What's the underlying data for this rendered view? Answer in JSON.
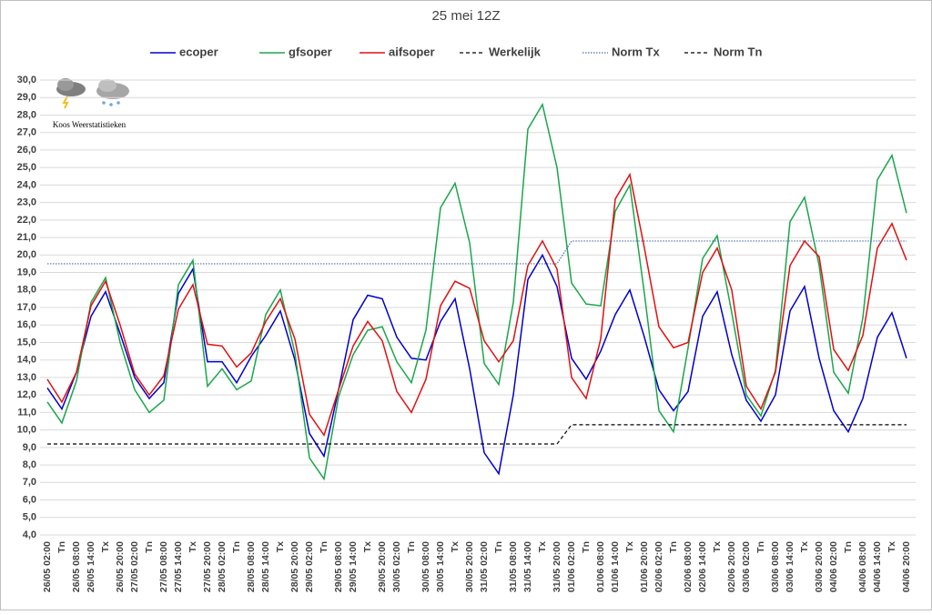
{
  "chart_data": {
    "type": "line",
    "title": "25 mei 12Z",
    "logo_text": "Koos Weerstatistieken",
    "categories": [
      "26/05 02:00",
      "Tn",
      "26/05 08:00",
      "26/05 14:00",
      "Tx",
      "26/05 20:00",
      "27/05 02:00",
      "Tn",
      "27/05 08:00",
      "27/05 14:00",
      "Tx",
      "27/05 20:00",
      "28/05 02:00",
      "Tn",
      "28/05 08:00",
      "28/05 14:00",
      "Tx",
      "28/05 20:00",
      "29/05 02:00",
      "Tn",
      "29/05 08:00",
      "29/05 14:00",
      "Tx",
      "29/05 20:00",
      "30/05 02:00",
      "Tn",
      "30/05 08:00",
      "30/05 14:00",
      "Tx",
      "30/05 20:00",
      "31/05 02:00",
      "Tn",
      "31/05 08:00",
      "31/05 14:00",
      "Tx",
      "31/05 20:00",
      "01/06 02:00",
      "Tn",
      "01/06 08:00",
      "01/06 14:00",
      "Tx",
      "01/06 20:00",
      "02/06 02:00",
      "Tn",
      "02/06 08:00",
      "02/06 14:00",
      "Tx",
      "02/06 20:00",
      "03/06 02:00",
      "Tn",
      "03/06 08:00",
      "03/06 14:00",
      "Tx",
      "03/06 20:00",
      "04/06 02:00",
      "Tn",
      "04/06 08:00",
      "04/06 14:00",
      "Tx",
      "04/06 20:00"
    ],
    "series": [
      {
        "name": "ecoper",
        "color": "#0000cc",
        "style": "solid",
        "values": [
          12.4,
          11.2,
          13.3,
          16.5,
          17.9,
          15.5,
          13.0,
          11.8,
          12.7,
          17.8,
          19.2,
          13.9,
          13.9,
          12.7,
          14.2,
          15.4,
          16.8,
          14.0,
          9.8,
          8.5,
          12.3,
          16.3,
          17.7,
          17.5,
          15.3,
          14.1,
          14.0,
          16.2,
          17.5,
          13.5,
          8.7,
          7.5,
          12.0,
          18.6,
          20.0,
          18.2,
          14.1,
          12.9,
          14.5,
          16.6,
          18.0,
          15.3,
          12.3,
          11.1,
          12.2,
          16.5,
          17.9,
          14.3,
          11.7,
          10.5,
          12.0,
          16.8,
          18.2,
          14.1,
          11.1,
          9.9,
          11.8,
          15.3,
          16.7,
          14.1
        ]
      },
      {
        "name": "gfsoper",
        "color": "#1aa64a",
        "style": "solid",
        "values": [
          11.6,
          10.4,
          12.8,
          17.3,
          18.7,
          15.0,
          12.3,
          11.0,
          11.7,
          18.3,
          19.7,
          12.5,
          13.5,
          12.3,
          12.8,
          16.6,
          18.0,
          14.4,
          8.4,
          7.2,
          11.9,
          14.3,
          15.7,
          15.9,
          13.9,
          12.7,
          15.7,
          22.7,
          24.1,
          20.7,
          13.8,
          12.6,
          17.3,
          27.2,
          28.6,
          25.0,
          18.4,
          17.2,
          17.1,
          22.5,
          24.0,
          17.8,
          11.1,
          9.9,
          14.7,
          19.8,
          21.1,
          16.7,
          12.0,
          10.8,
          13.4,
          21.9,
          23.3,
          19.4,
          13.3,
          12.1,
          16.4,
          24.3,
          25.7,
          22.4
        ]
      },
      {
        "name": "aifsoper",
        "color": "#e01010",
        "style": "solid",
        "values": [
          12.9,
          11.6,
          13.3,
          17.1,
          18.5,
          16.0,
          13.2,
          12.0,
          13.1,
          16.9,
          18.3,
          14.9,
          14.8,
          13.6,
          14.4,
          16.2,
          17.5,
          15.2,
          10.9,
          9.7,
          12.3,
          14.8,
          16.2,
          15.1,
          12.2,
          11.0,
          12.9,
          17.1,
          18.5,
          18.1,
          15.1,
          13.9,
          15.1,
          19.4,
          20.8,
          19.2,
          13.0,
          11.8,
          15.2,
          23.2,
          24.6,
          20.4,
          15.9,
          14.7,
          15.0,
          19.0,
          20.4,
          18.0,
          12.5,
          11.2,
          13.3,
          19.4,
          20.8,
          19.9,
          14.6,
          13.4,
          15.4,
          20.4,
          21.8,
          19.7
        ]
      },
      {
        "name": "Werkelijk",
        "color": "#000000",
        "style": "dashed",
        "values": [
          null,
          null,
          null,
          null,
          null,
          null,
          null,
          null,
          null,
          null,
          null,
          null,
          null,
          null,
          null,
          null,
          null,
          null,
          null,
          null,
          null,
          null,
          null,
          null,
          null,
          null,
          null,
          null,
          null,
          null,
          null,
          null,
          null,
          null,
          null,
          null,
          null,
          null,
          null,
          null,
          null,
          null,
          null,
          null,
          null,
          null,
          null,
          null,
          null,
          null,
          null,
          null,
          null,
          null,
          null,
          null,
          null,
          null,
          null,
          null
        ]
      },
      {
        "name": "Norm Tx",
        "color": "#4a6fa5",
        "style": "dotted",
        "values": [
          19.5,
          19.5,
          19.5,
          19.5,
          19.5,
          19.5,
          19.5,
          19.5,
          19.5,
          19.5,
          19.5,
          19.5,
          19.5,
          19.5,
          19.5,
          19.5,
          19.5,
          19.5,
          19.5,
          19.5,
          19.5,
          19.5,
          19.5,
          19.5,
          19.5,
          19.5,
          19.5,
          19.5,
          19.5,
          19.5,
          19.5,
          19.5,
          19.5,
          19.5,
          19.5,
          19.5,
          20.8,
          20.8,
          20.8,
          20.8,
          20.8,
          20.8,
          20.8,
          20.8,
          20.8,
          20.8,
          20.8,
          20.8,
          20.8,
          20.8,
          20.8,
          20.8,
          20.8,
          20.8,
          20.8,
          20.8,
          20.8,
          20.8,
          20.8,
          20.8
        ]
      },
      {
        "name": "Norm Tn",
        "color": "#000000",
        "style": "dashed",
        "values": [
          9.2,
          9.2,
          9.2,
          9.2,
          9.2,
          9.2,
          9.2,
          9.2,
          9.2,
          9.2,
          9.2,
          9.2,
          9.2,
          9.2,
          9.2,
          9.2,
          9.2,
          9.2,
          9.2,
          9.2,
          9.2,
          9.2,
          9.2,
          9.2,
          9.2,
          9.2,
          9.2,
          9.2,
          9.2,
          9.2,
          9.2,
          9.2,
          9.2,
          9.2,
          9.2,
          9.2,
          10.3,
          10.3,
          10.3,
          10.3,
          10.3,
          10.3,
          10.3,
          10.3,
          10.3,
          10.3,
          10.3,
          10.3,
          10.3,
          10.3,
          10.3,
          10.3,
          10.3,
          10.3,
          10.3,
          10.3,
          10.3,
          10.3,
          10.3,
          10.3
        ]
      }
    ],
    "ylim": [
      4,
      30
    ],
    "yticks": [
      {
        "value": 4,
        "label": "4,0"
      },
      {
        "value": 5,
        "label": "5,0"
      },
      {
        "value": 6,
        "label": "6,0"
      },
      {
        "value": 7,
        "label": "7,0"
      },
      {
        "value": 8,
        "label": "8,0"
      },
      {
        "value": 9,
        "label": "9,0"
      },
      {
        "value": 10,
        "label": "10,0"
      },
      {
        "value": 11,
        "label": "11,0"
      },
      {
        "value": 12,
        "label": "12,0"
      },
      {
        "value": 13,
        "label": "13,0"
      },
      {
        "value": 14,
        "label": "14,0"
      },
      {
        "value": 15,
        "label": "15,0"
      },
      {
        "value": 16,
        "label": "16,0"
      },
      {
        "value": 17,
        "label": "17,0"
      },
      {
        "value": 18,
        "label": "18,0"
      },
      {
        "value": 19,
        "label": "19,0"
      },
      {
        "value": 20,
        "label": "20,0"
      },
      {
        "value": 21,
        "label": "21,0"
      },
      {
        "value": 22,
        "label": "22,0"
      },
      {
        "value": 23,
        "label": "23,0"
      },
      {
        "value": 24,
        "label": "24,0"
      },
      {
        "value": 25,
        "label": "25,0"
      },
      {
        "value": 26,
        "label": "26,0"
      },
      {
        "value": 27,
        "label": "27,0"
      },
      {
        "value": 28,
        "label": "28,0"
      },
      {
        "value": 29,
        "label": "29,0"
      },
      {
        "value": 30,
        "label": "30,0"
      }
    ],
    "grid": true,
    "legend": "top"
  }
}
